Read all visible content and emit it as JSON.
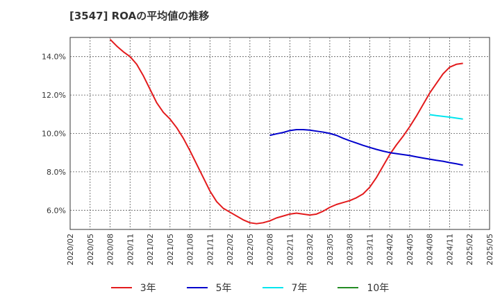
{
  "title": "[3547]  ROAの平均値の推移",
  "chart_data": {
    "type": "line",
    "title": "[3547]  ROAの平均値の推移",
    "xlabel": "",
    "ylabel": "",
    "ylim": [
      5.0,
      15.0
    ],
    "x_ticks": [
      "2020/02",
      "2020/05",
      "2020/08",
      "2020/11",
      "2021/02",
      "2021/05",
      "2021/08",
      "2021/11",
      "2022/02",
      "2022/05",
      "2022/08",
      "2022/11",
      "2023/02",
      "2023/05",
      "2023/08",
      "2023/11",
      "2024/02",
      "2024/05",
      "2024/08",
      "2024/11",
      "2025/02",
      "2025/05"
    ],
    "y_ticks": [
      6.0,
      8.0,
      10.0,
      12.0,
      14.0
    ],
    "y_tick_labels": [
      "6.0%",
      "8.0%",
      "10.0%",
      "12.0%",
      "14.0%"
    ],
    "grid": true,
    "series": [
      {
        "name": "3年",
        "color": "#e31a1c",
        "points": [
          [
            6,
            14.9
          ],
          [
            7,
            14.55
          ],
          [
            8,
            14.25
          ],
          [
            9,
            14.0
          ],
          [
            10,
            13.6
          ],
          [
            11,
            13.0
          ],
          [
            12,
            12.3
          ],
          [
            13,
            11.6
          ],
          [
            14,
            11.1
          ],
          [
            15,
            10.75
          ],
          [
            16,
            10.3
          ],
          [
            17,
            9.75
          ],
          [
            18,
            9.1
          ],
          [
            19,
            8.4
          ],
          [
            20,
            7.7
          ],
          [
            21,
            7.0
          ],
          [
            22,
            6.45
          ],
          [
            23,
            6.1
          ],
          [
            24,
            5.9
          ],
          [
            25,
            5.7
          ],
          [
            26,
            5.5
          ],
          [
            27,
            5.35
          ],
          [
            28,
            5.3
          ],
          [
            29,
            5.35
          ],
          [
            30,
            5.45
          ],
          [
            31,
            5.6
          ],
          [
            32,
            5.7
          ],
          [
            33,
            5.8
          ],
          [
            34,
            5.85
          ],
          [
            35,
            5.8
          ],
          [
            36,
            5.75
          ],
          [
            37,
            5.8
          ],
          [
            38,
            5.95
          ],
          [
            39,
            6.15
          ],
          [
            40,
            6.3
          ],
          [
            41,
            6.4
          ],
          [
            42,
            6.5
          ],
          [
            43,
            6.65
          ],
          [
            44,
            6.85
          ],
          [
            45,
            7.2
          ],
          [
            46,
            7.7
          ],
          [
            47,
            8.3
          ],
          [
            48,
            8.9
          ],
          [
            49,
            9.4
          ],
          [
            50,
            9.85
          ],
          [
            51,
            10.35
          ],
          [
            52,
            10.9
          ],
          [
            53,
            11.5
          ],
          [
            54,
            12.1
          ],
          [
            55,
            12.6
          ],
          [
            56,
            13.1
          ],
          [
            57,
            13.45
          ],
          [
            58,
            13.6
          ],
          [
            59,
            13.65
          ]
        ]
      },
      {
        "name": "5年",
        "color": "#0000cc",
        "points": [
          [
            30,
            9.9
          ],
          [
            31,
            9.98
          ],
          [
            32,
            10.05
          ],
          [
            33,
            10.15
          ],
          [
            34,
            10.2
          ],
          [
            35,
            10.2
          ],
          [
            36,
            10.17
          ],
          [
            37,
            10.12
          ],
          [
            38,
            10.07
          ],
          [
            39,
            10.0
          ],
          [
            40,
            9.9
          ],
          [
            41,
            9.75
          ],
          [
            42,
            9.62
          ],
          [
            43,
            9.5
          ],
          [
            44,
            9.38
          ],
          [
            45,
            9.27
          ],
          [
            46,
            9.17
          ],
          [
            47,
            9.08
          ],
          [
            48,
            9.0
          ],
          [
            49,
            8.95
          ],
          [
            50,
            8.9
          ],
          [
            51,
            8.85
          ],
          [
            52,
            8.78
          ],
          [
            53,
            8.72
          ],
          [
            54,
            8.66
          ],
          [
            55,
            8.6
          ],
          [
            56,
            8.55
          ],
          [
            57,
            8.48
          ],
          [
            58,
            8.42
          ],
          [
            59,
            8.35
          ]
        ]
      },
      {
        "name": "7年",
        "color": "#00e5ee",
        "points": [
          [
            54,
            10.98
          ],
          [
            55,
            10.93
          ],
          [
            56,
            10.89
          ],
          [
            57,
            10.85
          ],
          [
            58,
            10.8
          ],
          [
            59,
            10.75
          ]
        ]
      },
      {
        "name": "10年",
        "color": "#228b22",
        "points": []
      }
    ]
  }
}
